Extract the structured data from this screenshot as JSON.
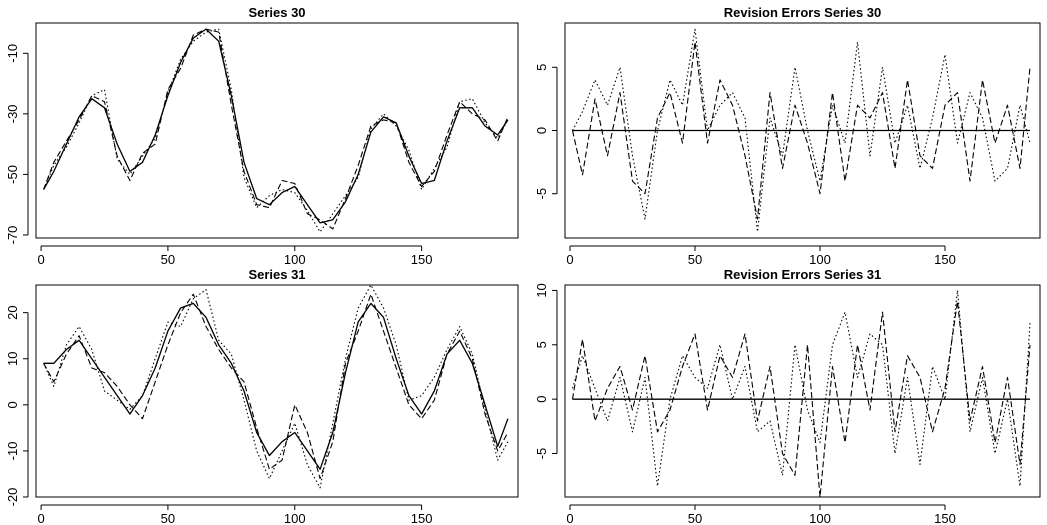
{
  "chart_data": [
    {
      "type": "line",
      "title": "Series 30",
      "xlabel": "",
      "ylabel": "",
      "xlim": [
        -2,
        188
      ],
      "ylim": [
        -71,
        0
      ],
      "xticks": [
        0,
        50,
        100,
        150
      ],
      "xtick_labels": [
        "0",
        "50",
        "100",
        "150"
      ],
      "yticks": [
        -70,
        -50,
        -30,
        -10
      ],
      "ytick_labels": [
        "-70",
        "-50",
        "-30",
        "-10"
      ],
      "grid": false,
      "style": {
        "solid": "solid",
        "dashed": "dashed",
        "dotted": "dotted"
      },
      "x": [
        1,
        5,
        10,
        15,
        20,
        25,
        30,
        35,
        40,
        45,
        50,
        55,
        60,
        65,
        70,
        75,
        80,
        85,
        90,
        95,
        100,
        105,
        110,
        115,
        120,
        125,
        130,
        135,
        140,
        145,
        150,
        155,
        160,
        165,
        170,
        175,
        180,
        184
      ],
      "series": [
        {
          "style": "solid",
          "values": [
            -55,
            -49,
            -40,
            -31,
            -25,
            -28,
            -40,
            -49,
            -46,
            -37,
            -24,
            -13,
            -5,
            -2,
            -6,
            -24,
            -46,
            -58,
            -60,
            -56,
            -54,
            -60,
            -66,
            -65,
            -59,
            -50,
            -36,
            -31,
            -33,
            -44,
            -53,
            -52,
            -39,
            -28,
            -28,
            -34,
            -37,
            -32
          ]
        },
        {
          "style": "dashed",
          "values": [
            -55,
            -46,
            -39,
            -32,
            -24,
            -26,
            -44,
            -52,
            -43,
            -40,
            -22,
            -15,
            -4,
            -2,
            -3,
            -27,
            -49,
            -60,
            -61,
            -52,
            -53,
            -63,
            -65,
            -68,
            -58,
            -47,
            -34,
            -32,
            -33,
            -46,
            -54,
            -49,
            -37,
            -26,
            -30,
            -32,
            -39,
            -31
          ]
        },
        {
          "style": "dotted",
          "values": [
            -55,
            -47,
            -41,
            -33,
            -24,
            -22,
            -45,
            -50,
            -44,
            -38,
            -23,
            -12,
            -6,
            -3,
            -2,
            -22,
            -51,
            -61,
            -57,
            -55,
            -56,
            -62,
            -69,
            -63,
            -57,
            -51,
            -35,
            -30,
            -34,
            -42,
            -55,
            -48,
            -41,
            -26,
            -25,
            -33,
            -38,
            -32
          ]
        }
      ]
    },
    {
      "type": "line",
      "title": "Revision Errors Series 30",
      "xlabel": "",
      "ylabel": "",
      "xlim": [
        -2,
        188
      ],
      "ylim": [
        -8.5,
        8.5
      ],
      "xticks": [
        0,
        50,
        100,
        150
      ],
      "xtick_labels": [
        "0",
        "50",
        "100",
        "150"
      ],
      "yticks": [
        -5,
        0,
        5
      ],
      "ytick_labels": [
        "-5",
        "0",
        "5"
      ],
      "grid": false,
      "style": {
        "solid": "solid",
        "dashed": "dashed",
        "dotted": "dotted"
      },
      "x": [
        1,
        5,
        10,
        15,
        20,
        25,
        30,
        35,
        40,
        45,
        50,
        55,
        60,
        65,
        70,
        75,
        80,
        85,
        90,
        95,
        100,
        105,
        110,
        115,
        120,
        125,
        130,
        135,
        140,
        145,
        150,
        155,
        160,
        165,
        170,
        175,
        180,
        184
      ],
      "series": [
        {
          "style": "solid",
          "values": [
            0,
            0,
            0,
            0,
            0,
            0,
            0,
            0,
            0,
            0,
            0,
            0,
            0,
            0,
            0,
            0,
            0,
            0,
            0,
            0,
            0,
            0,
            0,
            0,
            0,
            0,
            0,
            0,
            0,
            0,
            0,
            0,
            0,
            0,
            0,
            0,
            0,
            0
          ]
        },
        {
          "style": "dashed",
          "values": [
            0,
            -3.5,
            2.5,
            -2,
            3,
            -4,
            -5,
            1,
            3,
            -1,
            7,
            -1,
            4,
            2,
            -2,
            -7,
            3,
            -3,
            2,
            -1,
            -5,
            3,
            -4,
            2,
            1,
            3,
            -3,
            4,
            -2,
            -3,
            2,
            3,
            -4,
            4,
            -1,
            2,
            -3,
            5
          ]
        },
        {
          "style": "dotted",
          "values": [
            0,
            1.5,
            4,
            2,
            5,
            -2,
            -7,
            0,
            4,
            2,
            8,
            0,
            2,
            3,
            1,
            -8,
            1,
            -2,
            5,
            0,
            -4,
            2,
            -1,
            7,
            -2,
            5,
            -1,
            2,
            -3,
            1,
            6,
            -1,
            3,
            1,
            -4,
            -3,
            2,
            -1
          ]
        }
      ]
    },
    {
      "type": "line",
      "title": "Series 31",
      "xlabel": "",
      "ylabel": "",
      "xlim": [
        -2,
        188
      ],
      "ylim": [
        -20,
        26
      ],
      "xticks": [
        0,
        50,
        100,
        150
      ],
      "xtick_labels": [
        "0",
        "50",
        "100",
        "150"
      ],
      "yticks": [
        -20,
        -10,
        0,
        10,
        20
      ],
      "ytick_labels": [
        "-20",
        "-10",
        "0",
        "10",
        "20"
      ],
      "grid": false,
      "style": {
        "solid": "solid",
        "dashed": "dashed",
        "dotted": "dotted"
      },
      "x": [
        1,
        5,
        10,
        15,
        20,
        25,
        30,
        35,
        40,
        45,
        50,
        55,
        60,
        65,
        70,
        75,
        80,
        85,
        90,
        95,
        100,
        105,
        110,
        115,
        120,
        125,
        130,
        135,
        140,
        145,
        150,
        155,
        160,
        165,
        170,
        175,
        180,
        184
      ],
      "series": [
        {
          "style": "solid",
          "values": [
            9,
            9,
            12,
            14,
            10,
            6,
            2,
            -2,
            2,
            8,
            16,
            21,
            22,
            19,
            13,
            9,
            3,
            -6,
            -11,
            -8,
            -6,
            -10,
            -14,
            -6,
            7,
            18,
            22,
            19,
            10,
            2,
            -2,
            3,
            11,
            14,
            9,
            0,
            -9,
            -3
          ]
        },
        {
          "style": "dashed",
          "values": [
            9,
            5,
            11,
            15,
            8,
            7,
            4,
            0,
            -3,
            5,
            13,
            20,
            24,
            17,
            12,
            8,
            5,
            -5,
            -14,
            -12,
            0,
            -6,
            -16,
            -8,
            9,
            16,
            24,
            16,
            8,
            0,
            -3,
            1,
            11,
            16,
            10,
            -2,
            -10,
            -6
          ]
        },
        {
          "style": "dotted",
          "values": [
            9,
            4,
            13,
            17,
            12,
            3,
            1,
            -1,
            2,
            10,
            18,
            17,
            23,
            25,
            14,
            11,
            1,
            -10,
            -16,
            -10,
            -4,
            -13,
            -18,
            -4,
            10,
            21,
            26,
            21,
            13,
            1,
            2,
            6,
            12,
            17,
            11,
            -1,
            -12,
            -8
          ]
        }
      ]
    },
    {
      "type": "line",
      "title": "Revision Errors Series 31",
      "xlabel": "",
      "ylabel": "",
      "xlim": [
        -2,
        188
      ],
      "ylim": [
        -9,
        10.5
      ],
      "xticks": [
        0,
        50,
        100,
        150
      ],
      "xtick_labels": [
        "0",
        "50",
        "100",
        "150"
      ],
      "yticks": [
        -5,
        0,
        5,
        10
      ],
      "ytick_labels": [
        "-5",
        "0",
        "5",
        "10"
      ],
      "grid": false,
      "style": {
        "solid": "solid",
        "dashed": "dashed",
        "dotted": "dotted"
      },
      "x": [
        1,
        5,
        10,
        15,
        20,
        25,
        30,
        35,
        40,
        45,
        50,
        55,
        60,
        65,
        70,
        75,
        80,
        85,
        90,
        95,
        100,
        105,
        110,
        115,
        120,
        125,
        130,
        135,
        140,
        145,
        150,
        155,
        160,
        165,
        170,
        175,
        180,
        184
      ],
      "series": [
        {
          "style": "solid",
          "values": [
            0,
            0,
            0,
            0,
            0,
            0,
            0,
            0,
            0,
            0,
            0,
            0,
            0,
            0,
            0,
            0,
            0,
            0,
            0,
            0,
            0,
            0,
            0,
            0,
            0,
            0,
            0,
            0,
            0,
            0,
            0,
            0,
            0,
            0,
            0,
            0,
            0,
            0
          ]
        },
        {
          "style": "dashed",
          "values": [
            0,
            5.5,
            -2,
            1,
            3,
            -1,
            4,
            -3,
            -1,
            3,
            6,
            -1,
            4,
            2,
            6,
            -2,
            3,
            -5,
            -7,
            5,
            -9,
            3,
            -4,
            5,
            -1,
            8,
            -3,
            4,
            2,
            -3,
            1,
            9,
            -2,
            3,
            -4,
            2,
            -6,
            5
          ]
        },
        {
          "style": "dotted",
          "values": [
            1,
            4,
            1,
            -2,
            2,
            -3,
            2,
            -8,
            0,
            4,
            2,
            1,
            5,
            0,
            3,
            -3,
            -2,
            -7,
            5,
            -1,
            -4,
            5,
            8,
            2,
            6,
            5,
            -5,
            2,
            -6,
            3,
            0,
            10,
            -3,
            2,
            -5,
            0,
            -8,
            7
          ]
        }
      ]
    }
  ]
}
